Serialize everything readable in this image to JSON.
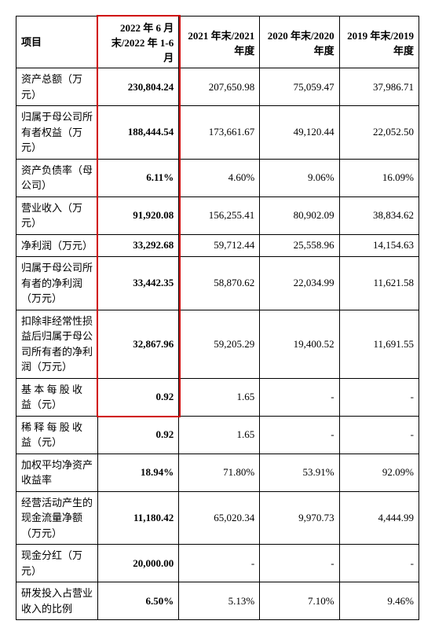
{
  "table": {
    "headers": [
      "项目",
      "2022 年 6 月末/2022 年 1-6 月",
      "2021 年末/2021年度",
      "2020 年末/2020年度",
      "2019 年末/2019年度"
    ],
    "rows": [
      {
        "label": "资产总额（万元）",
        "values": [
          "230,804.24",
          "207,650.98",
          "75,059.47",
          "37,986.71"
        ]
      },
      {
        "label": "归属于母公司所有者权益（万元）",
        "values": [
          "188,444.54",
          "173,661.67",
          "49,120.44",
          "22,052.50"
        ]
      },
      {
        "label": "资产负债率（母公司）",
        "values": [
          "6.11%",
          "4.60%",
          "9.06%",
          "16.09%"
        ]
      },
      {
        "label": "营业收入（万元）",
        "values": [
          "91,920.08",
          "156,255.41",
          "80,902.09",
          "38,834.62"
        ]
      },
      {
        "label": "净利润（万元）",
        "values": [
          "33,292.68",
          "59,712.44",
          "25,558.96",
          "14,154.63"
        ]
      },
      {
        "label": "归属于母公司所有者的净利润（万元）",
        "values": [
          "33,442.35",
          "58,870.62",
          "22,034.99",
          "11,621.58"
        ]
      },
      {
        "label": "扣除非经常性损益后归属于母公司所有者的净利润（万元）",
        "values": [
          "32,867.96",
          "59,205.29",
          "19,400.52",
          "11,691.55"
        ]
      },
      {
        "label": "基 本 每 股 收 益（元）",
        "values": [
          "0.92",
          "1.65",
          "-",
          "-"
        ]
      },
      {
        "label": "稀 释 每 股 收 益（元）",
        "values": [
          "0.92",
          "1.65",
          "-",
          "-"
        ]
      },
      {
        "label": "加权平均净资产收益率",
        "values": [
          "18.94%",
          "71.80%",
          "53.91%",
          "92.09%"
        ]
      },
      {
        "label": "经营活动产生的现金流量净额（万元）",
        "values": [
          "11,180.42",
          "65,020.34",
          "9,970.73",
          "4,444.99"
        ]
      },
      {
        "label": "现金分红（万元）",
        "values": [
          "20,000.00",
          "-",
          "-",
          "-"
        ]
      },
      {
        "label": "研发投入占营业收入的比例",
        "values": [
          "6.50%",
          "5.13%",
          "7.10%",
          "9.46%"
        ]
      }
    ]
  },
  "highlight": {
    "color": "#d00000"
  }
}
